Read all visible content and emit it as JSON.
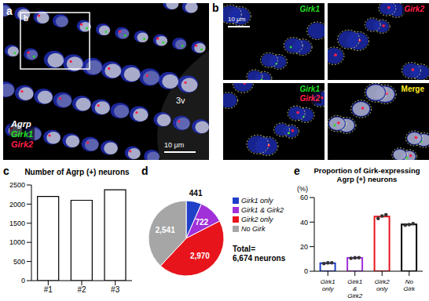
{
  "images": {
    "a": {
      "label": "a",
      "inset_label": "b",
      "region_label": "3v",
      "scale_bar": "10 μm",
      "channels": [
        {
          "name": "Agrp",
          "color": "#ffffff"
        },
        {
          "name": "Girk1",
          "color": "#22dd22"
        },
        {
          "name": "Girk2",
          "color": "#ff1f4b"
        }
      ]
    },
    "b": {
      "label": "b",
      "scale_bar": "10 μm",
      "tiles": [
        {
          "labels": [
            {
              "text": "Girk1",
              "color": "#22dd22"
            }
          ]
        },
        {
          "labels": [
            {
              "text": "Girk2",
              "color": "#ff1f4b"
            }
          ]
        },
        {
          "labels": [
            {
              "text": "Girk1",
              "color": "#22dd22"
            },
            {
              "text": "Girk2",
              "color": "#ff1f4b"
            }
          ]
        },
        {
          "labels": [
            {
              "text": "Merge",
              "color": "#ffee22"
            }
          ]
        }
      ]
    }
  },
  "chart_data": [
    {
      "type": "bar",
      "panel_label": "c",
      "title": "Number of Agrp (+) neurons",
      "categories": [
        "#1",
        "#2",
        "#3"
      ],
      "values": [
        2200,
        2100,
        2374
      ],
      "color": "#ffffff",
      "ylim": [
        0,
        2500
      ],
      "yticks": [
        0,
        500,
        1000,
        1500,
        2000,
        2500
      ],
      "grid": false
    },
    {
      "type": "pie",
      "panel_label": "d",
      "categories": [
        "Girk1 only",
        "Girk1 & Girk2",
        "Girk2 only",
        "No Girk"
      ],
      "values": [
        441,
        722,
        2970,
        2541
      ],
      "value_labels": [
        "441",
        "722",
        "2,970",
        "2,541"
      ],
      "colors": [
        "#1f3fc8",
        "#a030d8",
        "#e8141c",
        "#a6a6a6"
      ],
      "data_labels": true,
      "legend": "right",
      "total_label": [
        "Total=",
        "6,674 neurons"
      ]
    },
    {
      "type": "bar",
      "panel_label": "e",
      "title": "Proportion of Girk-expressing Agrp (+) neurons",
      "ylabel": "(%)",
      "categories": [
        "Girk1 only",
        "Girk1 & Girk2",
        "Girk2 only",
        "No Girk"
      ],
      "values": [
        6.6,
        10.8,
        44.5,
        38.1
      ],
      "replicates": [
        [
          6.2,
          6.8,
          6.9
        ],
        [
          10.5,
          10.9,
          11.0
        ],
        [
          43.0,
          45.0,
          46.0
        ],
        [
          37.5,
          38.0,
          38.8
        ]
      ],
      "colors": [
        "#1f3fc8",
        "#a030d8",
        "#e8141c",
        "#000000"
      ],
      "ylim": [
        0,
        60
      ],
      "yticks": [
        0,
        20,
        40,
        60
      ],
      "grid": false
    }
  ]
}
